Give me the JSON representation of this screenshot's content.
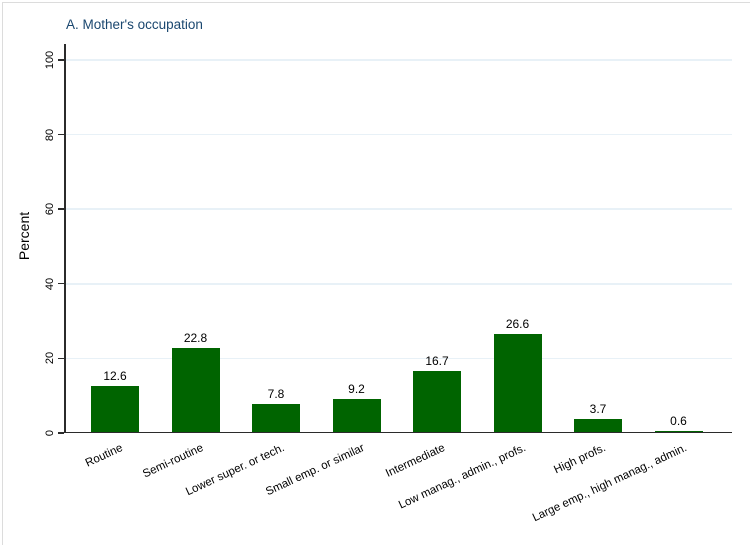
{
  "window": {
    "background": "#ffffff",
    "border_color": "#dcdcdc"
  },
  "chart_data": {
    "type": "bar",
    "title": "A. Mother's occupation",
    "xlabel": "",
    "ylabel": "Percent",
    "categories": [
      "Routine",
      "Semi-routine",
      "Lower super. or tech.",
      "Small emp. or similar",
      "Intermediate",
      "Low manag., admin., profs.",
      "High profs.",
      "Large emp., high manag., admin."
    ],
    "values": [
      12.6,
      22.8,
      7.8,
      9.2,
      16.7,
      26.6,
      3.7,
      0.6
    ],
    "bar_value_labels": [
      "12.6",
      "22.8",
      "7.8",
      "9.2",
      "16.7",
      "26.6",
      "3.7",
      "0.6"
    ],
    "yticks": [
      0,
      20,
      40,
      60,
      80,
      100
    ],
    "ytick_labels": [
      "0",
      "20",
      "40",
      "60",
      "80",
      "100"
    ],
    "ylim": [
      0,
      104
    ],
    "grid": true,
    "legend_position": "none",
    "xlabel_angle_deg": 25,
    "colors": {
      "bar": "#006400",
      "gridline": "#e8f1f7",
      "axis": "#2b2b2b",
      "title": "#1a476f",
      "text": "#000000"
    }
  }
}
